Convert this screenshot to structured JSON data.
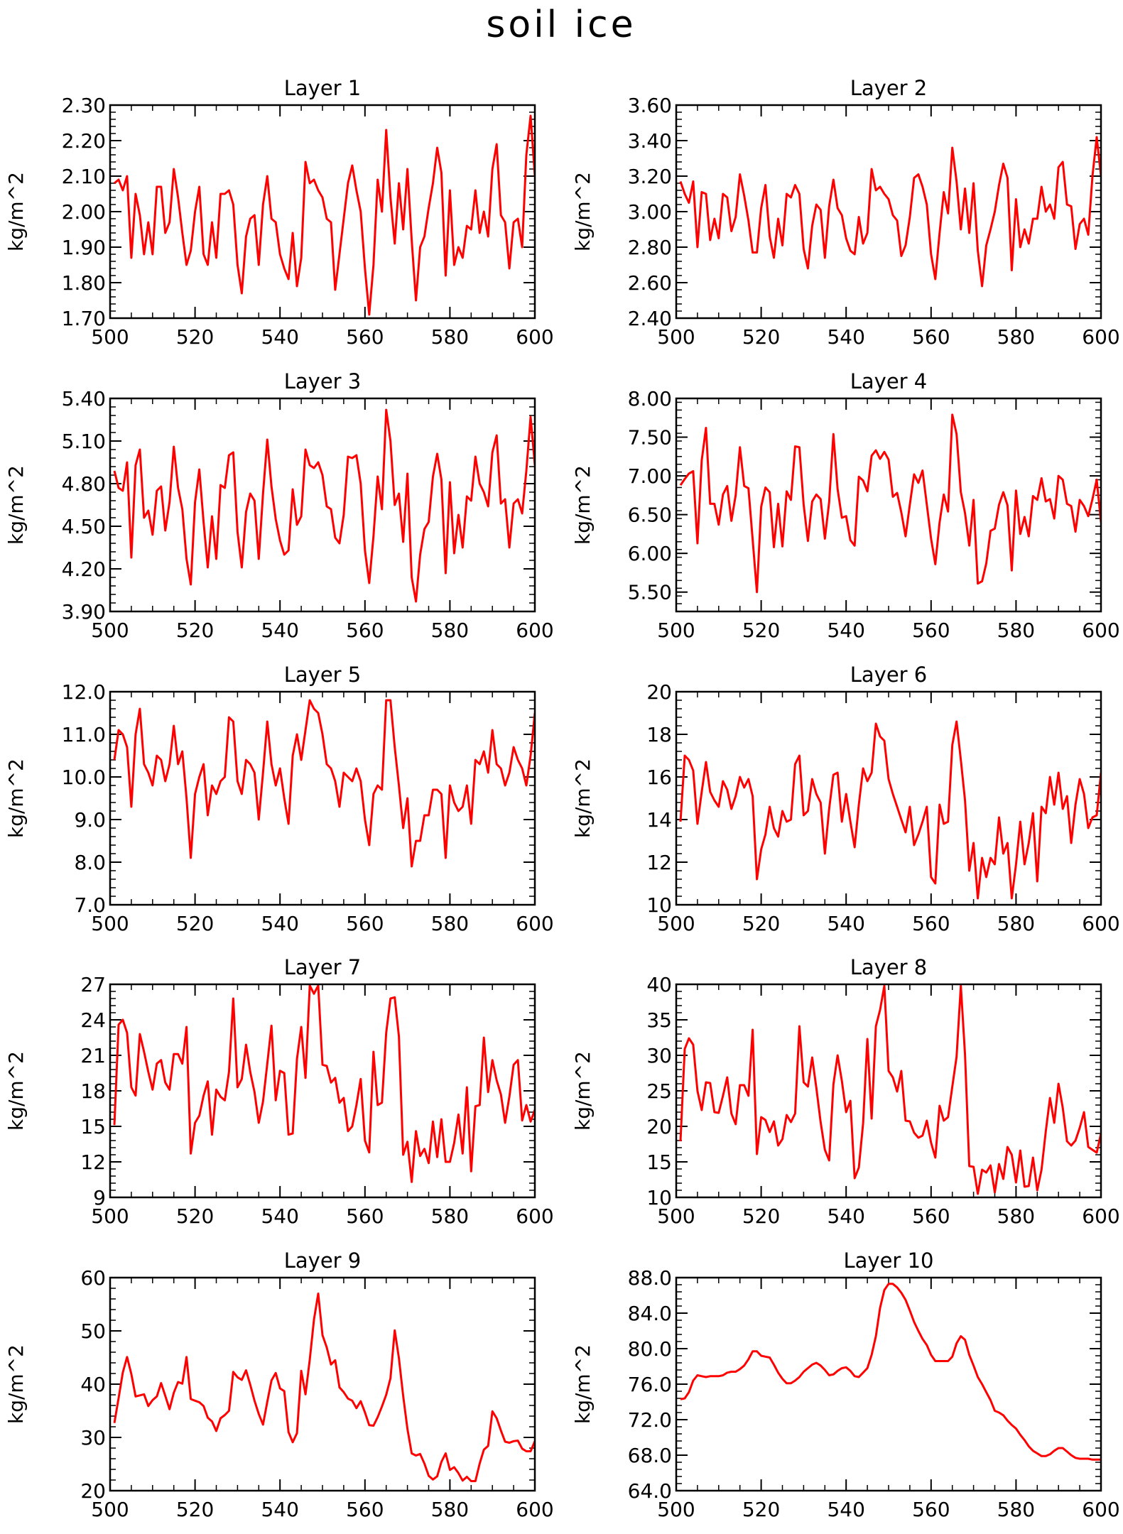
{
  "figure_title": "soil ice",
  "chart_data": [
    {
      "type": "line",
      "title": "Layer 1",
      "xlabel": "",
      "ylabel": "kg/m^2",
      "xlim": [
        500,
        600
      ],
      "ylim": [
        1.7,
        2.3
      ],
      "xticks": [
        "500",
        "520",
        "540",
        "560",
        "580",
        "600"
      ],
      "yticks": [
        "1.70",
        "1.80",
        "1.90",
        "2.00",
        "2.10",
        "2.20",
        "2.30"
      ],
      "color": "#ff0000",
      "x_start": 501,
      "values": [
        2.08,
        2.09,
        2.06,
        2.1,
        1.87,
        2.05,
        1.99,
        1.88,
        1.97,
        1.88,
        2.07,
        2.07,
        1.94,
        1.97,
        2.12,
        2.04,
        1.94,
        1.85,
        1.89,
        2.0,
        2.07,
        1.88,
        1.85,
        1.97,
        1.87,
        2.05,
        2.05,
        2.06,
        2.02,
        1.85,
        1.77,
        1.93,
        1.98,
        1.99,
        1.85,
        2.02,
        2.1,
        1.98,
        1.97,
        1.88,
        1.84,
        1.81,
        1.94,
        1.79,
        1.87,
        2.14,
        2.08,
        2.09,
        2.06,
        2.04,
        1.98,
        1.97,
        1.78,
        1.88,
        1.98,
        2.08,
        2.13,
        2.06,
        2.0,
        1.84,
        1.71,
        1.85,
        2.09,
        2.0,
        2.23,
        2.04,
        1.91,
        2.08,
        1.95,
        2.12,
        1.92,
        1.75,
        1.9,
        1.93,
        2.01,
        2.08,
        2.18,
        2.11,
        1.82,
        2.06,
        1.85,
        1.9,
        1.87,
        1.96,
        1.95,
        2.06,
        1.94,
        2.0,
        1.93,
        2.12,
        2.19,
        1.99,
        1.97,
        1.84,
        1.97,
        1.98,
        1.9,
        2.16,
        2.27,
        2.1
      ]
    },
    {
      "type": "line",
      "title": "Layer 2",
      "xlabel": "",
      "ylabel": "kg/m^2",
      "xlim": [
        500,
        600
      ],
      "ylim": [
        2.4,
        3.6
      ],
      "xticks": [
        "500",
        "520",
        "540",
        "560",
        "580",
        "600"
      ],
      "yticks": [
        "2.40",
        "2.60",
        "2.80",
        "3.00",
        "3.20",
        "3.40",
        "3.60"
      ],
      "color": "#ff0000",
      "x_start": 501,
      "values": [
        3.17,
        3.1,
        3.05,
        3.17,
        2.8,
        3.11,
        3.1,
        2.84,
        2.96,
        2.85,
        3.1,
        3.08,
        2.89,
        2.97,
        3.21,
        3.09,
        2.95,
        2.77,
        2.77,
        3.02,
        3.15,
        2.86,
        2.74,
        2.96,
        2.81,
        3.1,
        3.08,
        3.15,
        3.1,
        2.79,
        2.68,
        2.92,
        3.04,
        3.01,
        2.74,
        3.03,
        3.18,
        3.02,
        2.98,
        2.85,
        2.78,
        2.76,
        2.97,
        2.82,
        2.88,
        3.24,
        3.12,
        3.14,
        3.1,
        3.07,
        2.98,
        2.95,
        2.75,
        2.81,
        2.97,
        3.19,
        3.21,
        3.14,
        3.04,
        2.76,
        2.62,
        2.88,
        3.11,
        2.99,
        3.36,
        3.17,
        2.9,
        3.13,
        2.88,
        3.16,
        2.78,
        2.58,
        2.81,
        2.9,
        3.0,
        3.15,
        3.27,
        3.19,
        2.67,
        3.07,
        2.8,
        2.9,
        2.82,
        2.96,
        2.96,
        3.14,
        3.0,
        3.04,
        2.96,
        3.25,
        3.28,
        3.04,
        3.03,
        2.79,
        2.93,
        2.96,
        2.87,
        3.2,
        3.42,
        3.2
      ]
    },
    {
      "type": "line",
      "title": "Layer 3",
      "xlabel": "",
      "ylabel": "kg/m^2",
      "xlim": [
        500,
        600
      ],
      "ylim": [
        3.9,
        5.4
      ],
      "xticks": [
        "500",
        "520",
        "540",
        "560",
        "580",
        "600"
      ],
      "yticks": [
        "3.90",
        "4.20",
        "4.50",
        "4.80",
        "5.10",
        "5.40"
      ],
      "color": "#ff0000",
      "x_start": 501,
      "values": [
        4.89,
        4.77,
        4.75,
        4.95,
        4.28,
        4.93,
        5.04,
        4.56,
        4.61,
        4.44,
        4.75,
        4.78,
        4.47,
        4.67,
        5.06,
        4.77,
        4.62,
        4.27,
        4.09,
        4.67,
        4.9,
        4.53,
        4.21,
        4.57,
        4.27,
        4.79,
        4.77,
        5.0,
        5.02,
        4.46,
        4.21,
        4.6,
        4.73,
        4.68,
        4.27,
        4.73,
        5.11,
        4.78,
        4.55,
        4.4,
        4.3,
        4.33,
        4.76,
        4.51,
        4.57,
        5.04,
        4.93,
        4.91,
        4.95,
        4.86,
        4.64,
        4.62,
        4.42,
        4.38,
        4.58,
        4.99,
        4.98,
        5.0,
        4.8,
        4.33,
        4.1,
        4.43,
        4.85,
        4.62,
        5.32,
        5.1,
        4.65,
        4.73,
        4.39,
        4.87,
        4.14,
        3.97,
        4.3,
        4.48,
        4.53,
        4.85,
        5.01,
        4.83,
        4.17,
        4.81,
        4.31,
        4.58,
        4.35,
        4.71,
        4.68,
        4.99,
        4.8,
        4.74,
        4.64,
        5.02,
        5.14,
        4.66,
        4.69,
        4.35,
        4.66,
        4.69,
        4.59,
        4.89,
        5.27,
        4.93
      ]
    },
    {
      "type": "line",
      "title": "Layer 4",
      "xlabel": "",
      "ylabel": "kg/m^2",
      "xlim": [
        500,
        600
      ],
      "ylim": [
        5.25,
        8.0
      ],
      "xticks": [
        "500",
        "520",
        "540",
        "560",
        "580",
        "600"
      ],
      "yticks": [
        "5.50",
        "6.00",
        "6.50",
        "7.00",
        "7.50",
        "8.00"
      ],
      "color": "#ff0000",
      "x_start": 501,
      "values": [
        6.88,
        6.96,
        7.03,
        7.06,
        6.13,
        7.2,
        7.62,
        6.64,
        6.64,
        6.37,
        6.76,
        6.87,
        6.42,
        6.75,
        7.37,
        6.87,
        6.84,
        6.18,
        5.5,
        6.6,
        6.85,
        6.79,
        6.08,
        6.64,
        6.09,
        6.8,
        6.69,
        7.38,
        7.37,
        6.63,
        6.16,
        6.67,
        6.76,
        6.7,
        6.19,
        6.66,
        7.54,
        6.83,
        6.46,
        6.48,
        6.17,
        6.1,
        6.99,
        6.94,
        6.8,
        7.26,
        7.33,
        7.22,
        7.31,
        7.21,
        6.73,
        6.78,
        6.53,
        6.22,
        6.63,
        7.02,
        6.91,
        7.07,
        6.63,
        6.19,
        5.86,
        6.4,
        6.76,
        6.54,
        7.79,
        7.54,
        6.79,
        6.52,
        6.1,
        6.69,
        5.61,
        5.64,
        5.87,
        6.29,
        6.32,
        6.63,
        6.79,
        6.62,
        5.78,
        6.81,
        6.25,
        6.47,
        6.22,
        6.74,
        6.69,
        6.97,
        6.67,
        6.7,
        6.45,
        7.0,
        6.95,
        6.64,
        6.61,
        6.28,
        6.69,
        6.61,
        6.48,
        6.7,
        6.95,
        6.4
      ]
    },
    {
      "type": "line",
      "title": "Layer 5",
      "xlabel": "",
      "ylabel": "kg/m^2",
      "xlim": [
        500,
        600
      ],
      "ylim": [
        7.0,
        12.0
      ],
      "xticks": [
        "500",
        "520",
        "540",
        "560",
        "580",
        "600"
      ],
      "yticks": [
        "7.0",
        "8.0",
        "9.0",
        "10.0",
        "11.0",
        "12.0"
      ],
      "color": "#ff0000",
      "x_start": 501,
      "values": [
        10.4,
        11.1,
        11.0,
        10.7,
        9.3,
        11.0,
        11.6,
        10.3,
        10.1,
        9.8,
        10.5,
        10.4,
        9.9,
        10.3,
        11.2,
        10.3,
        10.6,
        9.5,
        8.1,
        9.6,
        10.0,
        10.3,
        9.1,
        9.8,
        9.6,
        9.9,
        10.0,
        11.4,
        11.3,
        9.9,
        9.6,
        10.4,
        10.3,
        10.1,
        9.0,
        10.1,
        11.3,
        10.3,
        9.8,
        10.2,
        9.5,
        8.9,
        10.5,
        11.0,
        10.4,
        11.1,
        11.8,
        11.6,
        11.5,
        11.0,
        10.3,
        10.2,
        9.9,
        9.3,
        10.1,
        10.0,
        9.9,
        10.2,
        9.9,
        9.0,
        8.4,
        9.6,
        9.8,
        9.7,
        11.8,
        11.8,
        10.7,
        9.8,
        8.8,
        9.5,
        7.9,
        8.5,
        8.5,
        9.1,
        9.1,
        9.7,
        9.7,
        9.6,
        8.1,
        9.8,
        9.4,
        9.2,
        9.3,
        9.8,
        8.9,
        10.4,
        10.3,
        10.6,
        10.1,
        11.1,
        10.3,
        10.2,
        9.8,
        10.1,
        10.7,
        10.4,
        10.2,
        9.8,
        10.5,
        11.5
      ]
    },
    {
      "type": "line",
      "title": "Layer 6",
      "xlabel": "",
      "ylabel": "kg/m^2",
      "xlim": [
        500,
        600
      ],
      "ylim": [
        10,
        20
      ],
      "xticks": [
        "500",
        "520",
        "540",
        "560",
        "580",
        "600"
      ],
      "yticks": [
        "10",
        "12",
        "14",
        "16",
        "18",
        "20"
      ],
      "color": "#ff0000",
      "x_start": 501,
      "values": [
        13.9,
        17.0,
        16.8,
        16.3,
        13.8,
        15.3,
        16.7,
        15.3,
        14.9,
        14.6,
        15.8,
        15.4,
        14.5,
        15.1,
        16.0,
        15.5,
        15.9,
        15.1,
        11.2,
        12.6,
        13.3,
        14.6,
        13.6,
        13.2,
        14.4,
        13.9,
        14.0,
        16.6,
        17.0,
        14.2,
        14.4,
        15.9,
        15.2,
        14.8,
        12.4,
        14.5,
        16.1,
        16.2,
        13.9,
        15.2,
        13.9,
        12.7,
        14.7,
        16.4,
        15.8,
        16.2,
        18.5,
        17.9,
        17.7,
        15.9,
        15.2,
        14.6,
        14.0,
        13.4,
        14.6,
        12.8,
        13.3,
        13.9,
        14.6,
        11.3,
        11.0,
        14.7,
        13.8,
        13.9,
        17.5,
        18.6,
        16.8,
        14.9,
        11.6,
        12.9,
        10.3,
        12.2,
        11.3,
        12.2,
        11.9,
        14.1,
        12.4,
        12.9,
        10.3,
        11.9,
        13.9,
        11.9,
        12.9,
        14.3,
        11.1,
        14.6,
        14.3,
        16.0,
        14.7,
        16.2,
        14.5,
        15.1,
        12.9,
        14.7,
        15.9,
        15.2,
        13.6,
        14.1,
        14.2,
        16.2
      ]
    },
    {
      "type": "line",
      "title": "Layer 7",
      "xlabel": "",
      "ylabel": "kg/m^2",
      "xlim": [
        500,
        600
      ],
      "ylim": [
        9,
        27
      ],
      "xticks": [
        "500",
        "520",
        "540",
        "560",
        "580",
        "600"
      ],
      "yticks": [
        "9",
        "12",
        "15",
        "18",
        "21",
        "24",
        "27"
      ],
      "color": "#ff0000",
      "x_start": 501,
      "values": [
        15.1,
        23.6,
        24.0,
        22.9,
        18.3,
        17.6,
        22.8,
        21.3,
        19.6,
        18.1,
        20.3,
        20.6,
        18.7,
        18.1,
        21.1,
        21.1,
        20.3,
        23.4,
        12.7,
        15.3,
        15.9,
        17.6,
        18.8,
        14.3,
        18.1,
        17.5,
        17.2,
        19.6,
        25.8,
        18.3,
        19.0,
        21.9,
        19.6,
        17.9,
        15.3,
        17.1,
        20.3,
        23.5,
        17.2,
        19.7,
        19.5,
        14.3,
        14.4,
        20.7,
        23.4,
        19.1,
        26.9,
        26.2,
        26.9,
        20.2,
        20.1,
        18.7,
        19.1,
        17.0,
        17.4,
        14.6,
        15.0,
        16.8,
        19.0,
        13.8,
        12.8,
        21.3,
        16.8,
        17.0,
        22.9,
        25.8,
        25.9,
        22.6,
        12.6,
        13.7,
        10.3,
        14.6,
        12.5,
        13.1,
        11.9,
        15.4,
        12.4,
        15.6,
        12.0,
        12.0,
        13.6,
        16.0,
        12.7,
        18.3,
        11.2,
        16.7,
        16.8,
        22.5,
        17.9,
        20.6,
        18.9,
        17.7,
        15.3,
        17.5,
        20.2,
        20.6,
        15.5,
        16.8,
        15.4,
        16.4
      ]
    },
    {
      "type": "line",
      "title": "Layer 8",
      "xlabel": "",
      "ylabel": "kg/m^2",
      "xlim": [
        500,
        600
      ],
      "ylim": [
        10,
        40
      ],
      "xticks": [
        "500",
        "520",
        "540",
        "560",
        "580",
        "600"
      ],
      "yticks": [
        "10",
        "15",
        "20",
        "25",
        "30",
        "35",
        "40"
      ],
      "color": "#ff0000",
      "x_start": 501,
      "values": [
        17.9,
        30.9,
        32.4,
        31.5,
        25.0,
        22.3,
        26.2,
        26.1,
        22.0,
        21.9,
        24.3,
        26.9,
        21.8,
        20.3,
        25.8,
        25.8,
        24.3,
        33.6,
        16.1,
        21.3,
        20.9,
        19.2,
        20.7,
        17.3,
        18.2,
        21.6,
        20.6,
        21.8,
        34.1,
        26.2,
        25.6,
        29.7,
        25.4,
        20.6,
        16.7,
        15.2,
        25.9,
        30.0,
        26.4,
        22.0,
        23.6,
        12.7,
        14.2,
        20.4,
        32.3,
        21.1,
        34.1,
        36.4,
        39.8,
        27.8,
        26.9,
        24.9,
        27.8,
        20.8,
        20.7,
        19.1,
        18.4,
        18.7,
        20.8,
        17.7,
        15.6,
        22.9,
        20.8,
        21.3,
        25.6,
        29.8,
        39.8,
        30.1,
        14.4,
        14.3,
        10.5,
        13.9,
        13.5,
        14.5,
        10.7,
        14.7,
        12.6,
        17.1,
        16.0,
        12.1,
        16.6,
        11.5,
        11.6,
        15.6,
        11.0,
        13.9,
        19.3,
        24.0,
        20.5,
        26.0,
        22.6,
        17.9,
        17.3,
        18.0,
        19.8,
        22.0,
        17.1,
        16.7,
        16.3,
        19.0
      ]
    },
    {
      "type": "line",
      "title": "Layer 9",
      "xlabel": "",
      "ylabel": "kg/m^2",
      "xlim": [
        500,
        600
      ],
      "ylim": [
        20,
        60
      ],
      "xticks": [
        "500",
        "520",
        "540",
        "560",
        "580",
        "600"
      ],
      "yticks": [
        "20",
        "30",
        "40",
        "50",
        "60"
      ],
      "color": "#ff0000",
      "x_start": 501,
      "values": [
        32.7,
        37.4,
        42.2,
        45.1,
        41.9,
        37.7,
        37.9,
        38.1,
        35.9,
        37.0,
        37.7,
        40.2,
        37.8,
        35.3,
        38.4,
        40.4,
        40.1,
        45.1,
        37.2,
        36.9,
        36.6,
        35.9,
        33.7,
        33.0,
        31.2,
        33.6,
        34.2,
        35.0,
        42.3,
        41.3,
        40.8,
        42.6,
        39.9,
        36.9,
        34.4,
        32.4,
        36.7,
        40.7,
        42.1,
        39.2,
        38.7,
        31.0,
        29.1,
        30.8,
        42.5,
        38.1,
        44.6,
        52.1,
        57.0,
        49.2,
        46.9,
        43.7,
        44.5,
        39.4,
        38.5,
        37.3,
        36.9,
        35.5,
        36.8,
        34.7,
        32.3,
        32.2,
        33.8,
        35.8,
        38.0,
        41.1,
        50.1,
        44.9,
        37.8,
        31.6,
        27.0,
        26.6,
        26.9,
        25.1,
        22.8,
        22.1,
        22.7,
        25.4,
        27.0,
        23.9,
        24.4,
        23.3,
        21.9,
        22.6,
        21.8,
        21.8,
        25.1,
        27.7,
        28.4,
        34.9,
        33.6,
        31.3,
        29.2,
        29.0,
        29.3,
        29.4,
        27.9,
        27.4,
        27.4,
        29.3
      ]
    },
    {
      "type": "line",
      "title": "Layer 10",
      "xlabel": "",
      "ylabel": "kg/m^2",
      "xlim": [
        500,
        600
      ],
      "ylim": [
        64.0,
        88.0
      ],
      "xticks": [
        "500",
        "520",
        "540",
        "560",
        "580",
        "600"
      ],
      "yticks": [
        "64.0",
        "68.0",
        "72.0",
        "76.0",
        "80.0",
        "84.0",
        "88.0"
      ],
      "color": "#ff0000",
      "x_start": 501,
      "values": [
        74.3,
        74.4,
        75.1,
        76.4,
        77.0,
        76.9,
        76.8,
        76.9,
        76.9,
        76.9,
        77.0,
        77.3,
        77.4,
        77.4,
        77.7,
        78.1,
        78.8,
        79.7,
        79.7,
        79.2,
        79.1,
        79.0,
        78.2,
        77.3,
        76.6,
        76.1,
        76.1,
        76.4,
        76.8,
        77.4,
        77.8,
        78.2,
        78.4,
        78.1,
        77.6,
        77.0,
        77.1,
        77.5,
        77.8,
        77.9,
        77.5,
        76.9,
        76.8,
        77.3,
        77.8,
        79.3,
        81.4,
        84.6,
        86.6,
        87.3,
        87.3,
        86.9,
        86.3,
        85.5,
        84.3,
        83.0,
        82.0,
        81.1,
        80.4,
        79.3,
        78.6,
        78.6,
        78.6,
        78.6,
        79.1,
        80.6,
        81.4,
        81.0,
        79.3,
        78.1,
        76.8,
        76.0,
        75.1,
        74.2,
        73.0,
        72.8,
        72.5,
        71.9,
        71.4,
        71.0,
        70.3,
        69.7,
        69.0,
        68.5,
        68.2,
        67.9,
        67.9,
        68.1,
        68.5,
        68.8,
        68.8,
        68.4,
        68.0,
        67.7,
        67.6,
        67.6,
        67.6,
        67.5,
        67.5,
        67.5
      ]
    }
  ]
}
